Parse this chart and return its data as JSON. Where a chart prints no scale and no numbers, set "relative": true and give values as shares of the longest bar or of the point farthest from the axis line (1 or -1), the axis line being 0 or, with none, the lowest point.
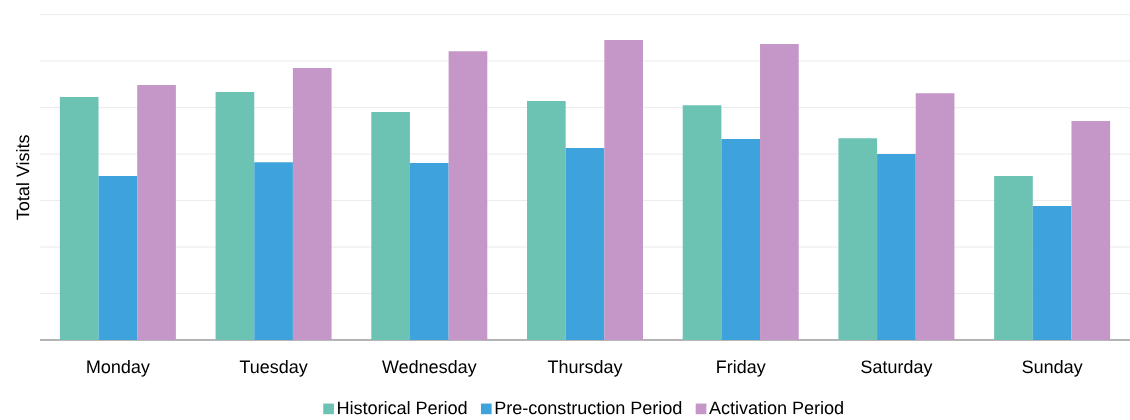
{
  "chart_data": {
    "type": "bar",
    "relative": true,
    "ylabel": "Total Visits",
    "categories": [
      "Monday",
      "Tuesday",
      "Wednesday",
      "Thursday",
      "Friday",
      "Saturday",
      "Sunday"
    ],
    "series": [
      {
        "name": "Historical Period",
        "color": "#6cc3b4",
        "values": [
          0.81,
          0.827,
          0.76,
          0.797,
          0.783,
          0.673,
          0.547
        ]
      },
      {
        "name": "Pre-construction Period",
        "color": "#3ea3dc",
        "values": [
          0.547,
          0.593,
          0.59,
          0.64,
          0.67,
          0.62,
          0.447
        ]
      },
      {
        "name": "Activation Period",
        "color": "#c596c8",
        "values": [
          0.85,
          0.907,
          0.963,
          1,
          0.987,
          0.823,
          0.73
        ]
      }
    ],
    "grid": "y",
    "legend": "bottom"
  }
}
